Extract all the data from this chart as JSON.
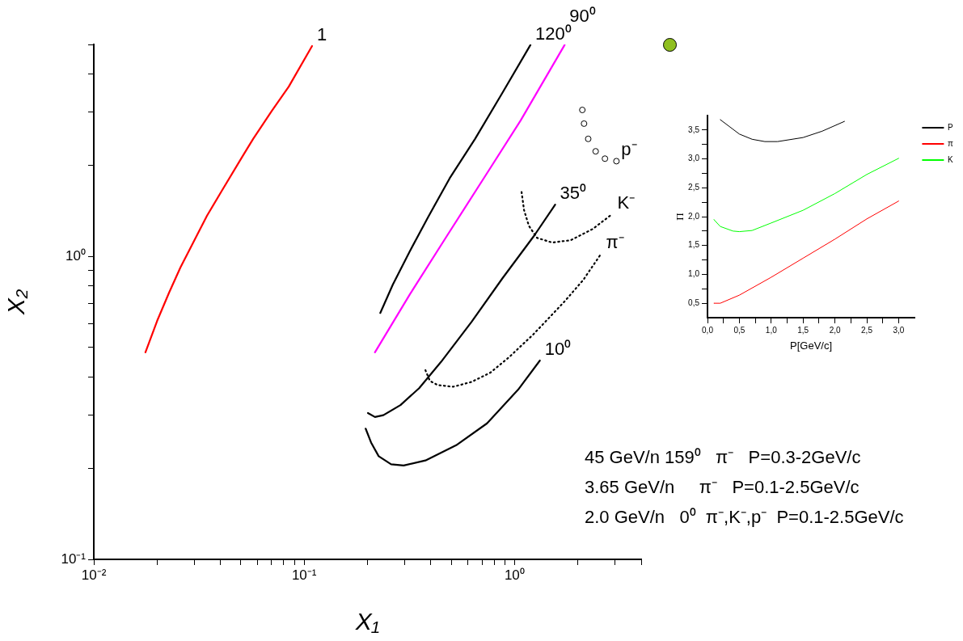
{
  "chart_data": [
    {
      "type": "line",
      "xlabel": "X₁",
      "ylabel": "X₂",
      "log": "xy",
      "grid": false,
      "marker": "none",
      "xlim": [
        0.01,
        4
      ],
      "ylim": [
        0.1,
        5
      ],
      "xticks": [
        {
          "value": 0.01,
          "label": "10⁻²"
        },
        {
          "value": 0.02,
          "label": null
        },
        {
          "value": 0.03,
          "label": null
        },
        {
          "value": 0.04,
          "label": null
        },
        {
          "value": 0.05,
          "label": null
        },
        {
          "value": 0.06,
          "label": null
        },
        {
          "value": 0.07,
          "label": null
        },
        {
          "value": 0.08,
          "label": null
        },
        {
          "value": 0.09,
          "label": null
        },
        {
          "value": 0.1,
          "label": "10⁻¹"
        },
        {
          "value": 0.2,
          "label": null
        },
        {
          "value": 0.3,
          "label": null
        },
        {
          "value": 0.4,
          "label": null
        },
        {
          "value": 0.5,
          "label": null
        },
        {
          "value": 0.6,
          "label": null
        },
        {
          "value": 0.7,
          "label": null
        },
        {
          "value": 0.8,
          "label": null
        },
        {
          "value": 0.9,
          "label": null
        },
        {
          "value": 1,
          "label": "10⁰"
        },
        {
          "value": 2,
          "label": null
        },
        {
          "value": 3,
          "label": null
        },
        {
          "value": 4,
          "label": null
        }
      ],
      "yticks": [
        {
          "value": 0.1,
          "label": "10⁻¹"
        },
        {
          "value": 0.2,
          "label": null
        },
        {
          "value": 0.3,
          "label": null
        },
        {
          "value": 0.4,
          "label": null
        },
        {
          "value": 0.5,
          "label": null
        },
        {
          "value": 0.6,
          "label": null
        },
        {
          "value": 0.7,
          "label": null
        },
        {
          "value": 0.8,
          "label": null
        },
        {
          "value": 0.9,
          "label": null
        },
        {
          "value": 1,
          "label": "10⁰"
        },
        {
          "value": 2,
          "label": null
        },
        {
          "value": 3,
          "label": null
        },
        {
          "value": 4,
          "label": null
        },
        {
          "value": 5,
          "label": null
        }
      ],
      "series": [
        {
          "name": "1",
          "color": "#ff0000",
          "x": [
            0.0176,
            0.02,
            0.0228,
            0.0258,
            0.0345,
            0.0405,
            0.051,
            0.0572,
            0.0702,
            0.0845,
            0.109
          ],
          "values": [
            0.482,
            0.612,
            0.759,
            0.918,
            1.36,
            1.64,
            2.14,
            2.44,
            3.02,
            3.63,
            4.94
          ]
        },
        {
          "name": "120⁰",
          "color": "#000000",
          "x": [
            0.23,
            0.264,
            0.318,
            0.389,
            0.492,
            0.649,
            0.875,
            1.19
          ],
          "values": [
            0.65,
            0.807,
            1.04,
            1.35,
            1.81,
            2.44,
            3.46,
            4.98
          ]
        },
        {
          "name": "90⁰",
          "color": "#ff00ff",
          "x": [
            0.217,
            0.318,
            0.478,
            0.74,
            1.07,
            1.73
          ],
          "values": [
            0.482,
            0.749,
            1.17,
            1.88,
            2.81,
            4.98
          ]
        },
        {
          "name": "35⁰",
          "color": "#000000",
          "x": [
            0.201,
            0.217,
            0.238,
            0.287,
            0.352,
            0.447,
            0.625,
            0.875,
            1.24,
            1.56
          ],
          "values": [
            0.304,
            0.295,
            0.299,
            0.323,
            0.367,
            0.448,
            0.608,
            0.845,
            1.17,
            1.48
          ]
        },
        {
          "name": "10⁰",
          "color": "#000000",
          "x": [
            0.196,
            0.208,
            0.226,
            0.259,
            0.297,
            0.377,
            0.528,
            0.74,
            1.04,
            1.32
          ],
          "values": [
            0.27,
            0.243,
            0.219,
            0.206,
            0.204,
            0.212,
            0.238,
            0.281,
            0.363,
            0.453
          ]
        },
        {
          "name": "π⁻",
          "color": "#000000",
          "line_style": "dotted",
          "x": [
            0.377,
            0.396,
            0.431,
            0.51,
            0.625,
            0.767,
            0.94,
            1.23,
            1.73,
            2.12,
            2.58
          ],
          "values": [
            0.421,
            0.388,
            0.376,
            0.371,
            0.385,
            0.413,
            0.464,
            0.553,
            0.71,
            0.835,
            1.02
          ]
        },
        {
          "name": "K⁻",
          "color": "#000000",
          "line_style": "dotted",
          "x": [
            1.08,
            1.11,
            1.17,
            1.28,
            1.51,
            1.85,
            2.35,
            2.92
          ],
          "values": [
            1.63,
            1.42,
            1.26,
            1.15,
            1.11,
            1.13,
            1.23,
            1.38
          ]
        },
        {
          "name": "p⁻",
          "color": "#000000",
          "type": "scatter",
          "marker": "circle",
          "x": [
            2.1,
            2.14,
            2.24,
            2.43,
            2.69,
            3.05
          ],
          "values": [
            3.04,
            2.74,
            2.44,
            2.22,
            2.1,
            2.06
          ]
        }
      ],
      "annotations": [
        "45 GeV/n 159⁰   π⁻   P=0.3-2GeV/c",
        "3.65 GeV/n     π⁻   P=0.1-2.5GeV/c",
        "2.0 GeV/n   0⁰  π⁻,K⁻,p⁻  P=0.1-2.5GeV/c"
      ]
    },
    {
      "type": "line",
      "xlabel": "P[GeV/c]",
      "ylabel": "Π",
      "grid": false,
      "marker": "none",
      "legend": "top right",
      "xlim": [
        0,
        3.25
      ],
      "ylim": [
        0.25,
        3.75
      ],
      "xticks": [
        {
          "value": 0,
          "label": "0,0"
        },
        {
          "value": 0.25,
          "label": null
        },
        {
          "value": 0.5,
          "label": "0,5"
        },
        {
          "value": 0.75,
          "label": null
        },
        {
          "value": 1,
          "label": "1,0"
        },
        {
          "value": 1.25,
          "label": null
        },
        {
          "value": 1.5,
          "label": "1,5"
        },
        {
          "value": 1.75,
          "label": null
        },
        {
          "value": 2,
          "label": "2,0"
        },
        {
          "value": 2.25,
          "label": null
        },
        {
          "value": 2.5,
          "label": "2,5"
        },
        {
          "value": 2.75,
          "label": null
        },
        {
          "value": 3,
          "label": "3,0"
        }
      ],
      "yticks": [
        {
          "value": 0.5,
          "label": "0,5"
        },
        {
          "value": 0.75,
          "label": null
        },
        {
          "value": 1,
          "label": "1,0"
        },
        {
          "value": 1.25,
          "label": null
        },
        {
          "value": 1.5,
          "label": "1,5"
        },
        {
          "value": 1.75,
          "label": null
        },
        {
          "value": 2,
          "label": "2,0"
        },
        {
          "value": 2.25,
          "label": null
        },
        {
          "value": 2.5,
          "label": "2,5"
        },
        {
          "value": 2.75,
          "label": null
        },
        {
          "value": 3,
          "label": "3,0"
        },
        {
          "value": 3.25,
          "label": null
        },
        {
          "value": 3.5,
          "label": "3,5"
        }
      ],
      "series": [
        {
          "name": "P",
          "color": "#000000",
          "x": [
            0.2,
            0.5,
            0.7,
            0.9,
            1.1,
            1.5,
            1.8,
            2.15
          ],
          "values": [
            3.68,
            3.43,
            3.34,
            3.3,
            3.3,
            3.37,
            3.48,
            3.65
          ]
        },
        {
          "name": "π",
          "color": "#ff0000",
          "x": [
            0.1,
            0.2,
            0.5,
            1.0,
            1.5,
            2.0,
            2.5,
            3.0
          ],
          "values": [
            0.5,
            0.5,
            0.64,
            0.95,
            1.28,
            1.61,
            1.96,
            2.27
          ]
        },
        {
          "name": "K",
          "color": "#00ff00",
          "x": [
            0.1,
            0.2,
            0.4,
            0.5,
            0.7,
            1.0,
            1.5,
            2.0,
            2.5,
            3.0
          ],
          "values": [
            1.95,
            1.83,
            1.75,
            1.74,
            1.76,
            1.89,
            2.11,
            2.4,
            2.73,
            3.01
          ]
        }
      ]
    }
  ]
}
